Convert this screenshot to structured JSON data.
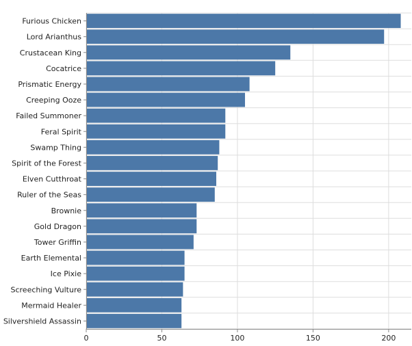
{
  "chart_data": {
    "type": "bar",
    "orientation": "horizontal",
    "title": "",
    "xlabel": "",
    "ylabel": "",
    "categories": [
      "Furious Chicken",
      "Lord Arianthus",
      "Crustacean King",
      "Cocatrice",
      "Prismatic Energy",
      "Creeping Ooze",
      "Failed Summoner",
      "Feral Spirit",
      "Swamp Thing",
      "Spirit of the Forest",
      "Elven Cutthroat",
      "Ruler of the Seas",
      "Brownie",
      "Gold Dragon",
      "Tower Griffin",
      "Earth Elemental",
      "Ice Pixie",
      "Screeching Vulture",
      "Mermaid Healer",
      "Silvershield Assassin"
    ],
    "values": [
      208,
      197,
      135,
      125,
      108,
      105,
      92,
      92,
      88,
      87,
      86,
      85,
      73,
      73,
      71,
      65,
      65,
      64,
      63,
      63
    ],
    "xlim": [
      0,
      215
    ],
    "xticks": [
      "0",
      "50",
      "100",
      "150",
      "200"
    ],
    "grid": true,
    "bar_color": "#4c78a8",
    "grid_color": "#dddddd"
  }
}
